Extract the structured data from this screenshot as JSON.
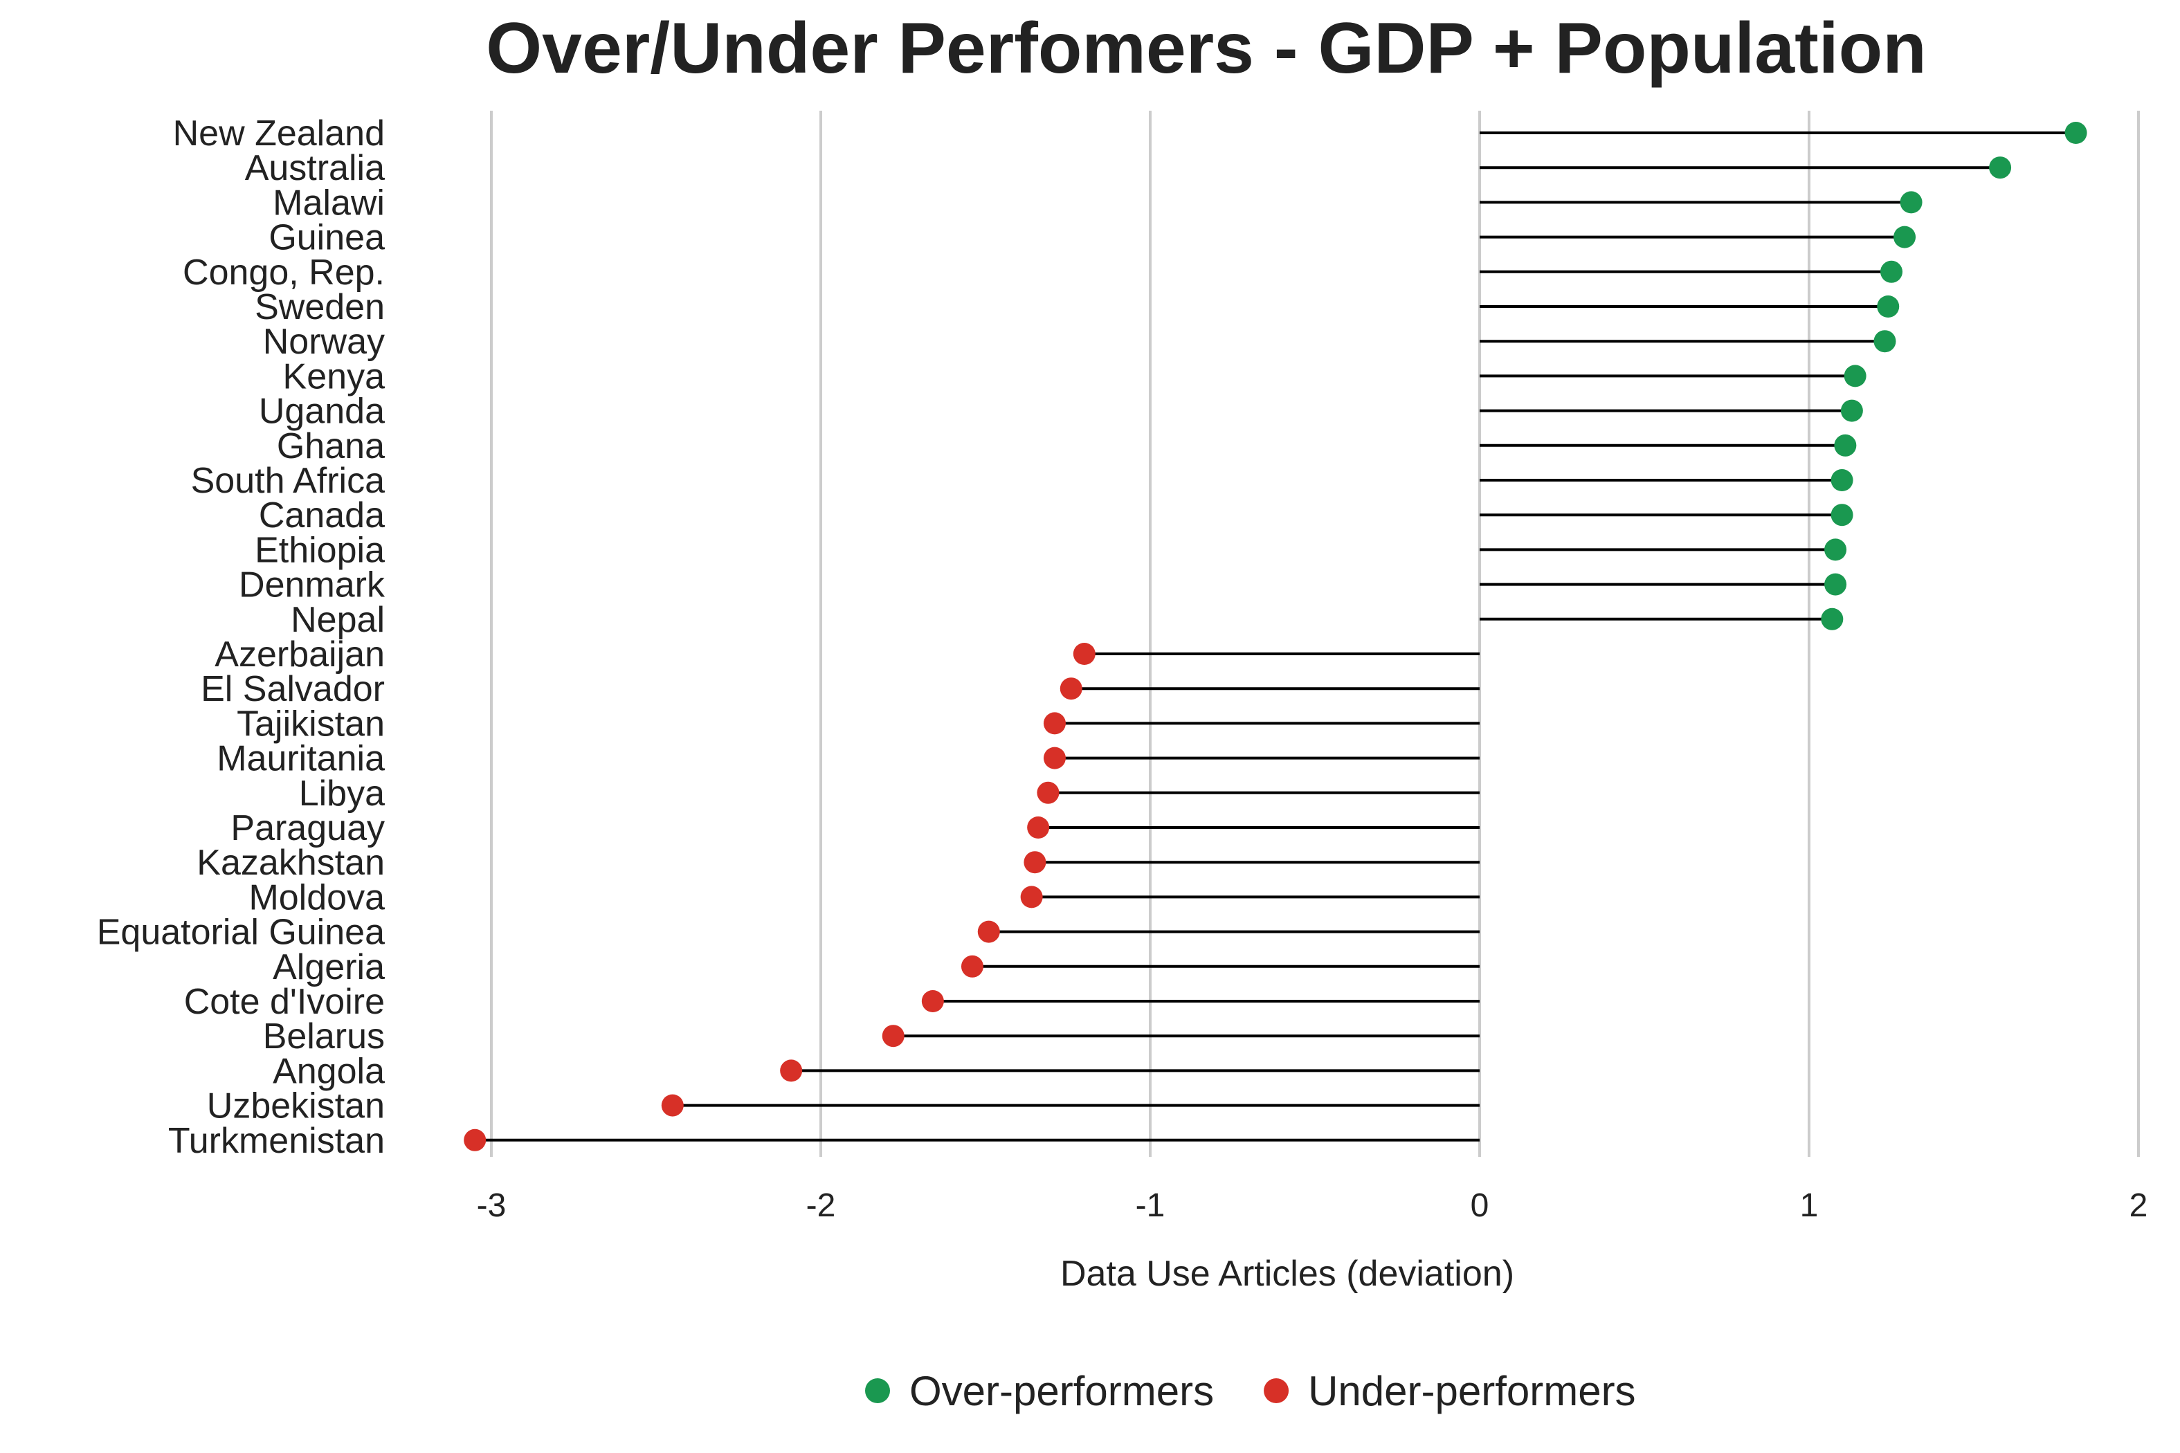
{
  "chart_data": {
    "type": "lollipop",
    "title": "Over/Under Perfomers - GDP + Population",
    "xlabel": "Data Use Articles (deviation)",
    "ylabel": "",
    "xlim": [
      -3.3,
      2.05
    ],
    "xticks": [
      -3,
      -2,
      -1,
      0,
      1,
      2
    ],
    "xtick_labels": [
      "-3",
      "-2",
      "-1",
      "0",
      "1",
      "2"
    ],
    "grid": "vertical",
    "legend_position": "bottom",
    "colors": {
      "over": "#1a9850",
      "under": "#d73027"
    },
    "legend": [
      {
        "key": "over",
        "label": "Over-performers"
      },
      {
        "key": "under",
        "label": "Under-performers"
      }
    ],
    "categories": [
      "New Zealand",
      "Australia",
      "Malawi",
      "Guinea",
      "Congo, Rep.",
      "Sweden",
      "Norway",
      "Kenya",
      "Uganda",
      "Ghana",
      "South Africa",
      "Canada",
      "Ethiopia",
      "Denmark",
      "Nepal",
      "Azerbaijan",
      "El Salvador",
      "Tajikistan",
      "Mauritania",
      "Libya",
      "Paraguay",
      "Kazakhstan",
      "Moldova",
      "Equatorial Guinea",
      "Algeria",
      "Cote d'Ivoire",
      "Belarus",
      "Angola",
      "Uzbekistan",
      "Turkmenistan"
    ],
    "values": [
      1.81,
      1.58,
      1.31,
      1.29,
      1.25,
      1.24,
      1.23,
      1.14,
      1.13,
      1.11,
      1.1,
      1.1,
      1.08,
      1.08,
      1.07,
      -1.2,
      -1.24,
      -1.29,
      -1.29,
      -1.31,
      -1.34,
      -1.35,
      -1.36,
      -1.49,
      -1.54,
      -1.66,
      -1.78,
      -2.09,
      -2.45,
      -3.05
    ],
    "groups": [
      "over",
      "over",
      "over",
      "over",
      "over",
      "over",
      "over",
      "over",
      "over",
      "over",
      "over",
      "over",
      "over",
      "over",
      "over",
      "under",
      "under",
      "under",
      "under",
      "under",
      "under",
      "under",
      "under",
      "under",
      "under",
      "under",
      "under",
      "under",
      "under",
      "under"
    ]
  }
}
